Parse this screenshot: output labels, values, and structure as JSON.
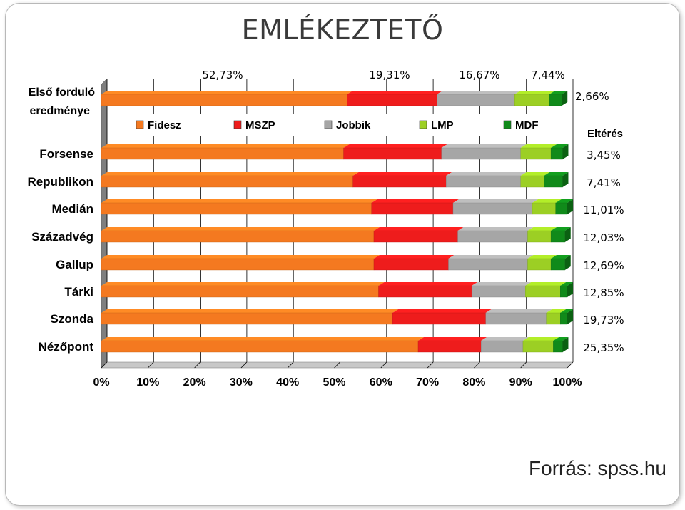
{
  "slide": {
    "title": "EMLÉKEZTETŐ",
    "source": "Forrás: spss.hu"
  },
  "chart_data": {
    "type": "bar",
    "stacked": true,
    "orientation": "horizontal",
    "categories": [
      "Első forduló eredménye",
      "Forsense",
      "Republikon",
      "Medián",
      "Századvég",
      "Gallup",
      "Tárki",
      "Szonda",
      "Nézőpont"
    ],
    "series": [
      {
        "name": "Fidesz",
        "color": "#f47920",
        "values": [
          52.73,
          52.0,
          54.0,
          58.0,
          58.5,
          58.5,
          59.5,
          62.5,
          68.0
        ]
      },
      {
        "name": "MSZP",
        "color": "#ee1c1c",
        "values": [
          19.31,
          21.0,
          20.0,
          17.5,
          18.0,
          16.0,
          20.0,
          20.0,
          13.5
        ]
      },
      {
        "name": "Jobbik",
        "color": "#a6a6a6",
        "values": [
          16.67,
          17.0,
          16.0,
          17.0,
          15.0,
          17.0,
          11.5,
          13.0,
          9.0
        ]
      },
      {
        "name": "LMP",
        "color": "#9ccf24",
        "values": [
          7.44,
          6.5,
          5.0,
          5.0,
          5.0,
          5.0,
          7.5,
          3.0,
          6.5
        ]
      },
      {
        "name": "MDF",
        "color": "#108a1a",
        "values": [
          2.66,
          2.5,
          4.0,
          2.5,
          3.0,
          3.0,
          1.5,
          1.5,
          2.0
        ]
      }
    ],
    "top_labels": [
      "52,73%",
      "19,31%",
      "16,67%",
      "7,44%"
    ],
    "first_round_mdf_label": "2,66%",
    "deviation_header": "Eltérés",
    "deviations": [
      "3,45%",
      "7,41%",
      "11,01%",
      "12,03%",
      "12,69%",
      "12,85%",
      "19,73%",
      "25,35%"
    ],
    "x_ticks": [
      "0%",
      "10%",
      "20%",
      "30%",
      "40%",
      "50%",
      "60%",
      "70%",
      "80%",
      "90%",
      "100%"
    ],
    "xlim": [
      0,
      100
    ],
    "grid": true,
    "legend_position": "top, below first bar"
  }
}
